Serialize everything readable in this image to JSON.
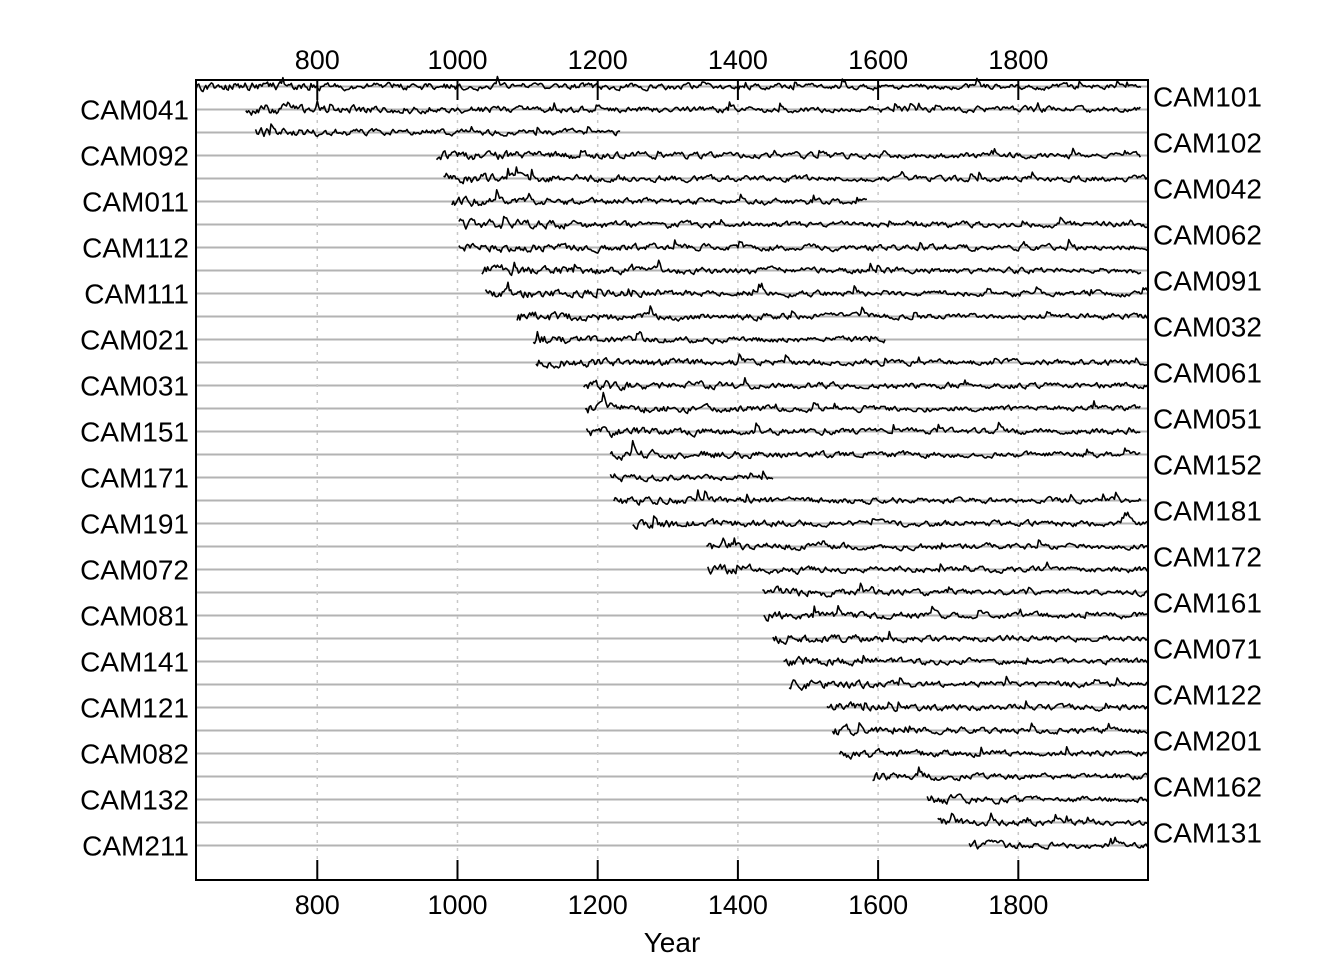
{
  "chart_data": {
    "type": "line",
    "chart_kind": "segment plot of tree-ring series",
    "xlabel": "Year",
    "xlim": [
      627,
      1985
    ],
    "xticks": [
      800,
      1000,
      1200,
      1400,
      1600,
      1800
    ],
    "grid": {
      "horizontal": true,
      "vertical": true,
      "vertical_style": "dotted"
    },
    "labels_left": [
      "CAM041",
      "CAM092",
      "CAM011",
      "CAM112",
      "CAM111",
      "CAM021",
      "CAM031",
      "CAM151",
      "CAM171",
      "CAM191",
      "CAM072",
      "CAM081",
      "CAM141",
      "CAM121",
      "CAM082",
      "CAM132",
      "CAM211"
    ],
    "labels_right": [
      "CAM101",
      "CAM102",
      "CAM042",
      "CAM062",
      "CAM091",
      "CAM032",
      "CAM061",
      "CAM051",
      "CAM152",
      "CAM181",
      "CAM172",
      "CAM161",
      "CAM071",
      "CAM122",
      "CAM201",
      "CAM162",
      "CAM131"
    ],
    "series": [
      {
        "name": "CAM101",
        "start": 1730,
        "end": 1985
      },
      {
        "name": "CAM041",
        "start": 1685,
        "end": 1985
      },
      {
        "name": "CAM102",
        "start": 1670,
        "end": 1985
      },
      {
        "name": "CAM092",
        "start": 1592,
        "end": 1985
      },
      {
        "name": "CAM042",
        "start": 1545,
        "end": 1985
      },
      {
        "name": "CAM011",
        "start": 1535,
        "end": 1985
      },
      {
        "name": "CAM062",
        "start": 1527,
        "end": 1985
      },
      {
        "name": "CAM112",
        "start": 1473,
        "end": 1985
      },
      {
        "name": "CAM091",
        "start": 1465,
        "end": 1985
      },
      {
        "name": "CAM111",
        "start": 1450,
        "end": 1985
      },
      {
        "name": "CAM032",
        "start": 1437,
        "end": 1985
      },
      {
        "name": "CAM021",
        "start": 1435,
        "end": 1985
      },
      {
        "name": "CAM061",
        "start": 1357,
        "end": 1985
      },
      {
        "name": "CAM031",
        "start": 1355,
        "end": 1985
      },
      {
        "name": "CAM051",
        "start": 1250,
        "end": 1985
      },
      {
        "name": "CAM151",
        "start": 1223,
        "end": 1975
      },
      {
        "name": "CAM152",
        "start": 1218,
        "end": 1450
      },
      {
        "name": "CAM171",
        "start": 1218,
        "end": 1975
      },
      {
        "name": "CAM181",
        "start": 1184,
        "end": 1975
      },
      {
        "name": "CAM191",
        "start": 1182,
        "end": 1975
      },
      {
        "name": "CAM172",
        "start": 1180,
        "end": 1985
      },
      {
        "name": "CAM072",
        "start": 1112,
        "end": 1985
      },
      {
        "name": "CAM161",
        "start": 1108,
        "end": 1610
      },
      {
        "name": "CAM081",
        "start": 1085,
        "end": 1985
      },
      {
        "name": "CAM071",
        "start": 1040,
        "end": 1985
      },
      {
        "name": "CAM141",
        "start": 1035,
        "end": 1975
      },
      {
        "name": "CAM122",
        "start": 1002,
        "end": 1985
      },
      {
        "name": "CAM121",
        "start": 1002,
        "end": 1985
      },
      {
        "name": "CAM201",
        "start": 992,
        "end": 1585
      },
      {
        "name": "CAM082",
        "start": 980,
        "end": 1985
      },
      {
        "name": "CAM162",
        "start": 970,
        "end": 1975
      },
      {
        "name": "CAM132",
        "start": 712,
        "end": 1233
      },
      {
        "name": "CAM131",
        "start": 698,
        "end": 1975
      },
      {
        "name": "CAM211",
        "start": 627,
        "end": 1975
      }
    ]
  }
}
